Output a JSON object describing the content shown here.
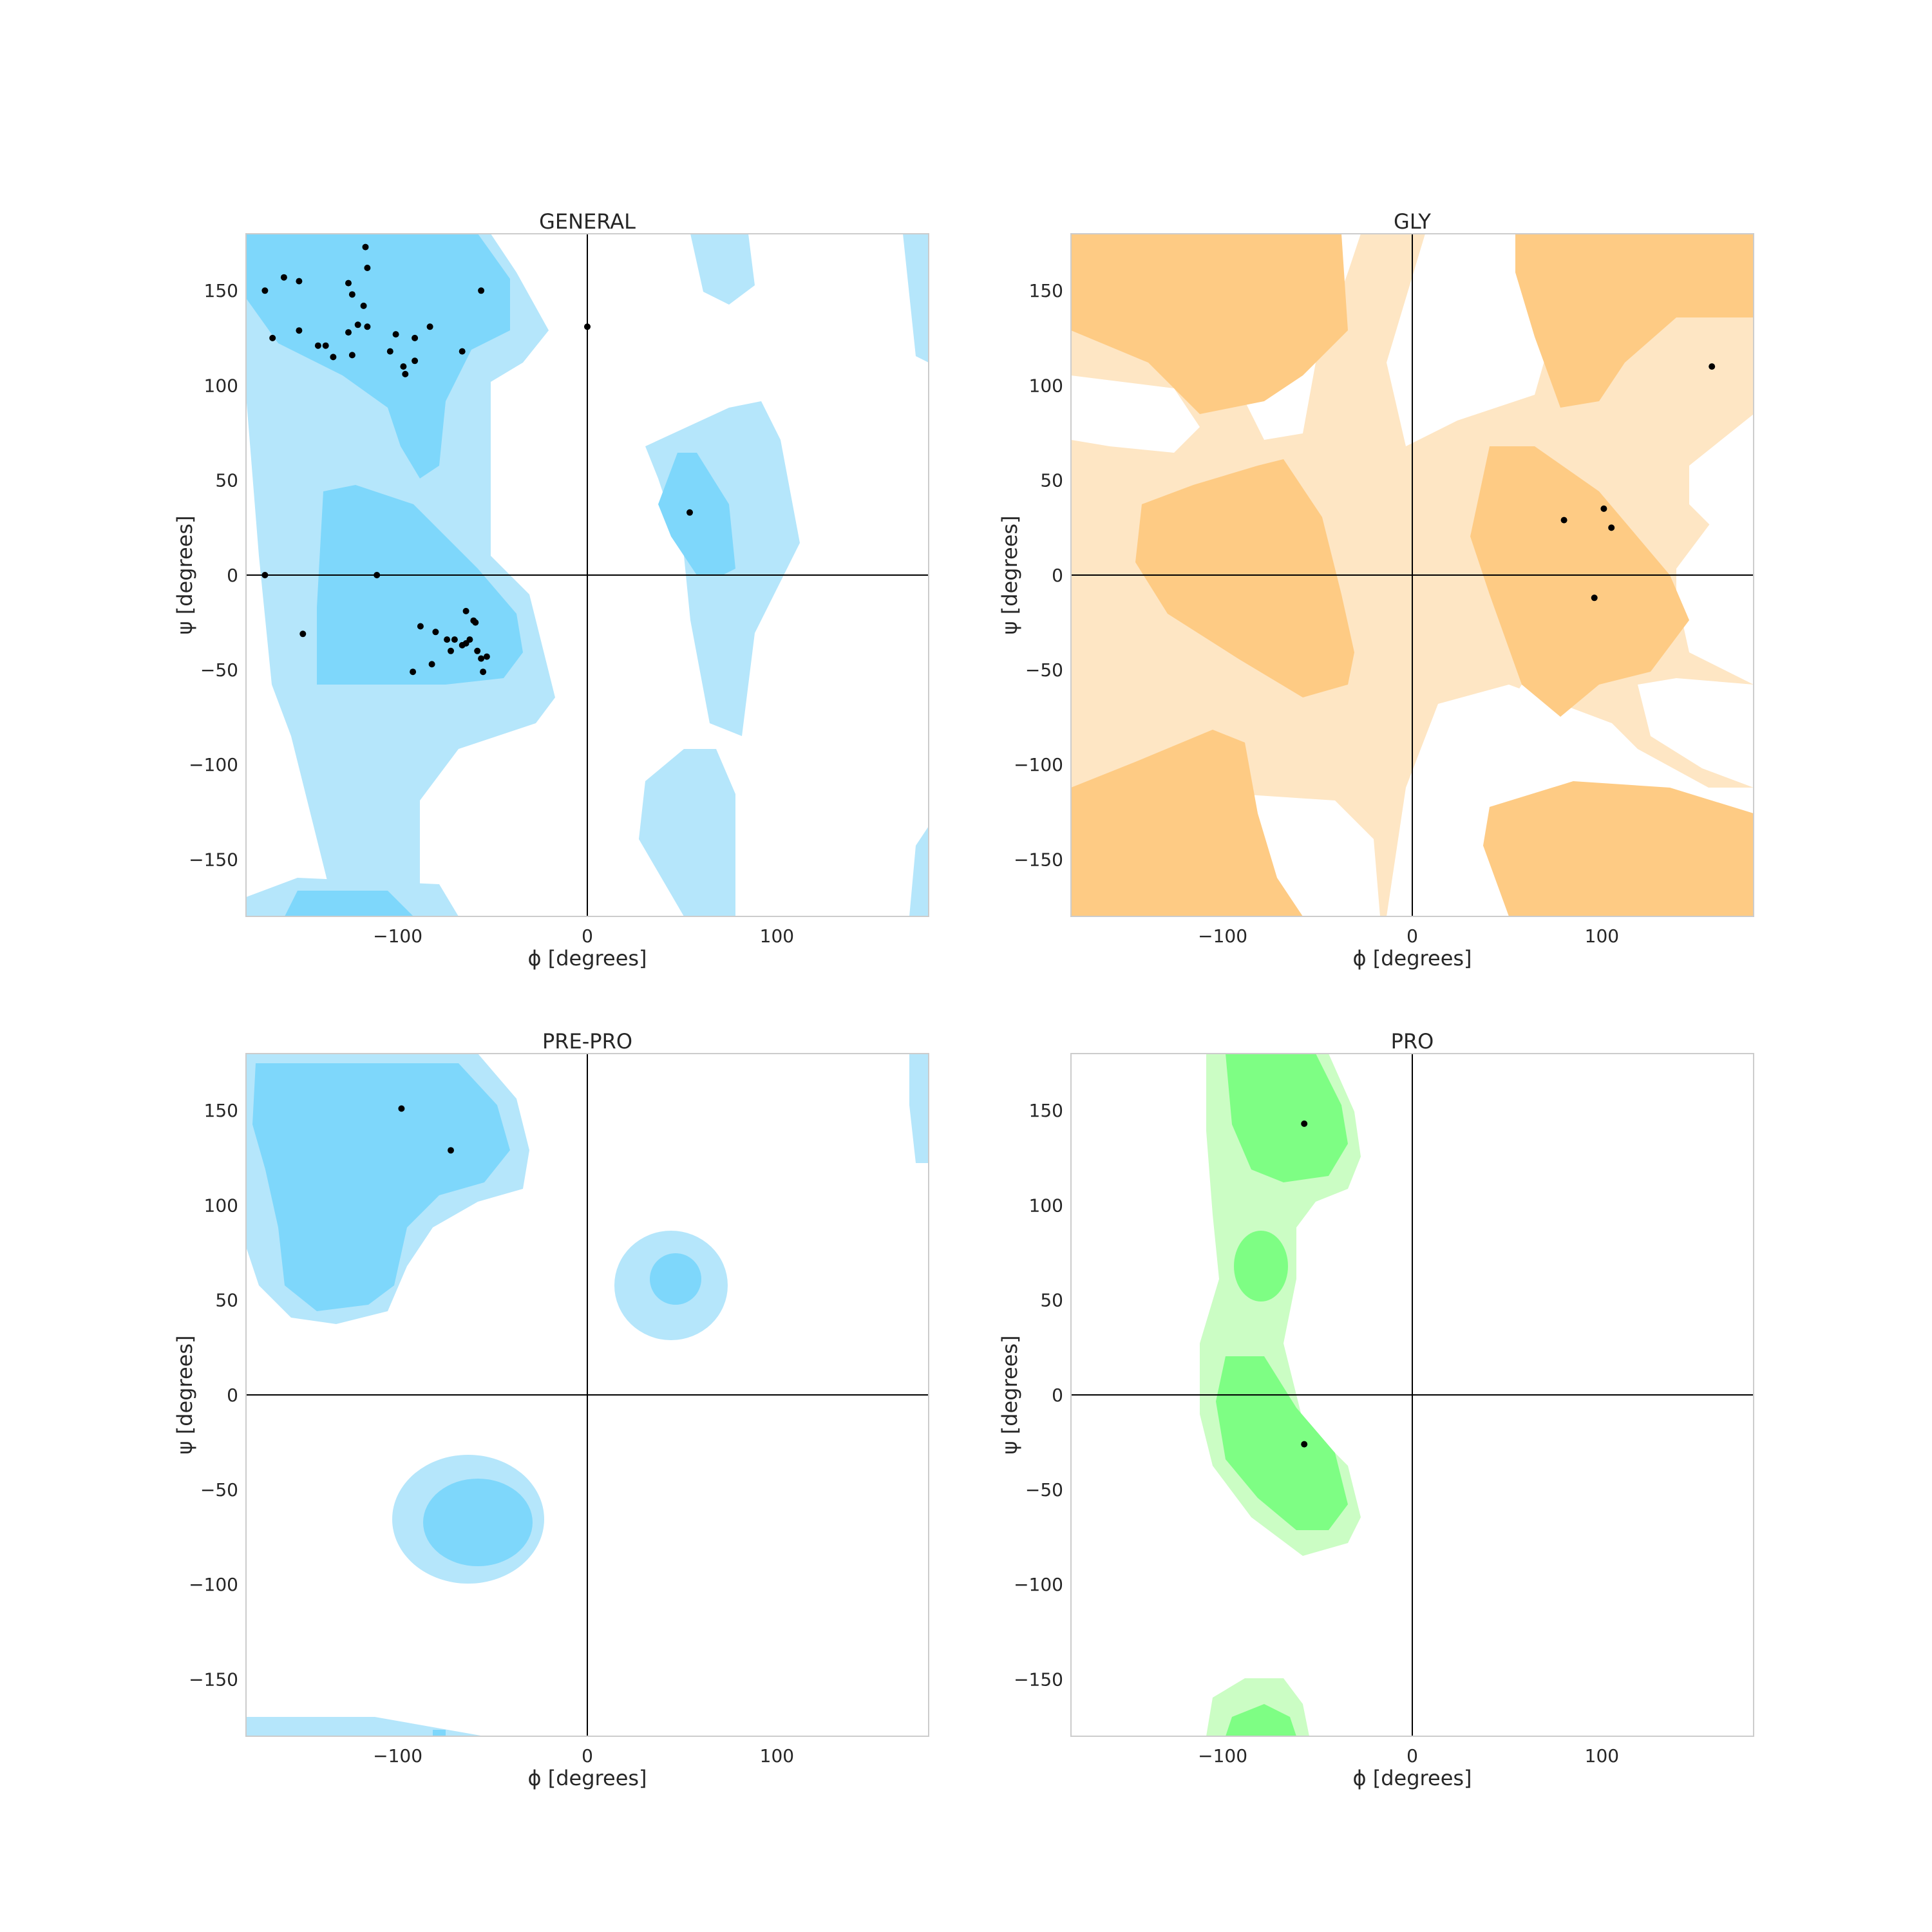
{
  "figure": {
    "background": "#ffffff"
  },
  "colors": {
    "general_allowed": "#b5e6fb",
    "general_favored": "#7ed7fb",
    "gly_allowed": "#fee6c4",
    "gly_favored": "#fecb84",
    "prepro_allowed": "#b5e6fb",
    "prepro_favored": "#7ed7fb",
    "pro_allowed": "#cbfdc4",
    "pro_favored": "#7efe84",
    "point": "#000000",
    "axis_line": "#000000",
    "frame": "#cccccc"
  },
  "chart_data": [
    {
      "type": "scatter",
      "title": "GENERAL",
      "xlabel": "ϕ [degrees]",
      "ylabel": "ψ [degrees]",
      "xlim": [
        -180,
        180
      ],
      "ylim": [
        -180,
        180
      ],
      "xticks": [
        "−100",
        "0",
        "100"
      ],
      "yticks": [
        "150",
        "100",
        "50",
        "0",
        "−50",
        "−100",
        "−150"
      ],
      "grid": false,
      "region_colors": [
        "general_allowed",
        "general_favored"
      ],
      "points": [
        [
          -170,
          150
        ],
        [
          -166,
          125
        ],
        [
          -160,
          157
        ],
        [
          -152,
          155
        ],
        [
          -152,
          129
        ],
        [
          -142,
          121
        ],
        [
          -138,
          121
        ],
        [
          -134,
          115
        ],
        [
          -126,
          154
        ],
        [
          -126,
          128
        ],
        [
          -124,
          148
        ],
        [
          -124,
          116
        ],
        [
          -121,
          132
        ],
        [
          -118,
          142
        ],
        [
          -116,
          131
        ],
        [
          -116,
          162
        ],
        [
          -117,
          173
        ],
        [
          -104,
          118
        ],
        [
          -101,
          127
        ],
        [
          -97,
          110
        ],
        [
          -96,
          106
        ],
        [
          -91,
          113
        ],
        [
          -91,
          125
        ],
        [
          -83,
          131
        ],
        [
          -66,
          118
        ],
        [
          -56,
          150
        ],
        [
          0,
          131
        ],
        [
          54,
          33
        ],
        [
          -170,
          0
        ],
        [
          -111,
          0
        ],
        [
          -150,
          -31
        ],
        [
          -88,
          -27
        ],
        [
          -80,
          -30
        ],
        [
          -74,
          -34
        ],
        [
          -72,
          -40
        ],
        [
          -70,
          -34
        ],
        [
          -66,
          -37
        ],
        [
          -64,
          -19
        ],
        [
          -64,
          -36
        ],
        [
          -62,
          -34
        ],
        [
          -60,
          -24
        ],
        [
          -59,
          -25
        ],
        [
          -58,
          -40
        ],
        [
          -56,
          -44
        ],
        [
          -55,
          -51
        ],
        [
          -53,
          -43
        ],
        [
          -82,
          -47
        ],
        [
          -92,
          -51
        ]
      ]
    },
    {
      "type": "scatter",
      "title": "GLY",
      "xlabel": "ϕ [degrees]",
      "ylabel": "ψ [degrees]",
      "xlim": [
        -180,
        180
      ],
      "ylim": [
        -180,
        180
      ],
      "xticks": [
        "−100",
        "0",
        "100"
      ],
      "yticks": [
        "150",
        "100",
        "50",
        "0",
        "−50",
        "−100",
        "−150"
      ],
      "grid": false,
      "region_colors": [
        "gly_allowed",
        "gly_favored"
      ],
      "points": [
        [
          80,
          29
        ],
        [
          101,
          35
        ],
        [
          105,
          25
        ],
        [
          96,
          -12
        ],
        [
          158,
          110
        ]
      ]
    },
    {
      "type": "scatter",
      "title": "PRE-PRO",
      "xlabel": "ϕ [degrees]",
      "ylabel": "ψ [degrees]",
      "xlim": [
        -180,
        180
      ],
      "ylim": [
        -180,
        180
      ],
      "xticks": [
        "−100",
        "0",
        "100"
      ],
      "yticks": [
        "150",
        "100",
        "50",
        "0",
        "−50",
        "−100",
        "−150"
      ],
      "grid": false,
      "region_colors": [
        "prepro_allowed",
        "prepro_favored"
      ],
      "points": [
        [
          -98,
          151
        ],
        [
          -72,
          129
        ]
      ]
    },
    {
      "type": "scatter",
      "title": "PRO",
      "xlabel": "ϕ [degrees]",
      "ylabel": "ψ [degrees]",
      "xlim": [
        -180,
        180
      ],
      "ylim": [
        -180,
        180
      ],
      "xticks": [
        "−100",
        "0",
        "100"
      ],
      "yticks": [
        "150",
        "100",
        "50",
        "0",
        "−50",
        "−100",
        "−150"
      ],
      "grid": false,
      "region_colors": [
        "pro_allowed",
        "pro_favored"
      ],
      "points": [
        [
          -57,
          143
        ],
        [
          -57,
          -26
        ]
      ]
    }
  ]
}
